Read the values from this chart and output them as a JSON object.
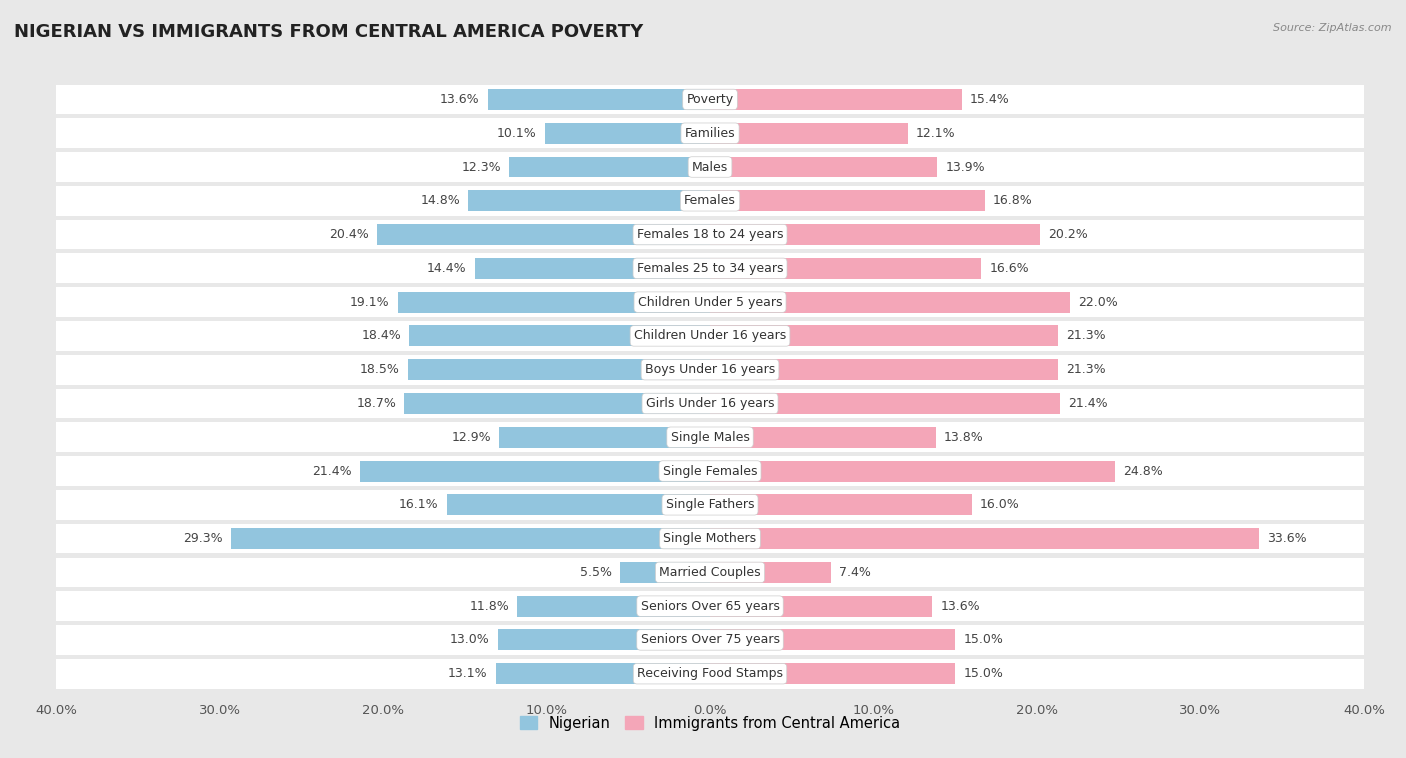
{
  "title": "NIGERIAN VS IMMIGRANTS FROM CENTRAL AMERICA POVERTY",
  "source": "Source: ZipAtlas.com",
  "categories": [
    "Poverty",
    "Families",
    "Males",
    "Females",
    "Females 18 to 24 years",
    "Females 25 to 34 years",
    "Children Under 5 years",
    "Children Under 16 years",
    "Boys Under 16 years",
    "Girls Under 16 years",
    "Single Males",
    "Single Females",
    "Single Fathers",
    "Single Mothers",
    "Married Couples",
    "Seniors Over 65 years",
    "Seniors Over 75 years",
    "Receiving Food Stamps"
  ],
  "nigerian": [
    13.6,
    10.1,
    12.3,
    14.8,
    20.4,
    14.4,
    19.1,
    18.4,
    18.5,
    18.7,
    12.9,
    21.4,
    16.1,
    29.3,
    5.5,
    11.8,
    13.0,
    13.1
  ],
  "central_america": [
    15.4,
    12.1,
    13.9,
    16.8,
    20.2,
    16.6,
    22.0,
    21.3,
    21.3,
    21.4,
    13.8,
    24.8,
    16.0,
    33.6,
    7.4,
    13.6,
    15.0,
    15.0
  ],
  "nigerian_color": "#92C5DE",
  "central_america_color": "#F4A6B8",
  "background_color": "#e8e8e8",
  "row_color": "#ffffff",
  "xlim": 40.0,
  "legend_nigerian": "Nigerian",
  "legend_central_america": "Immigrants from Central America",
  "title_fontsize": 13,
  "label_fontsize": 9,
  "cat_fontsize": 9
}
